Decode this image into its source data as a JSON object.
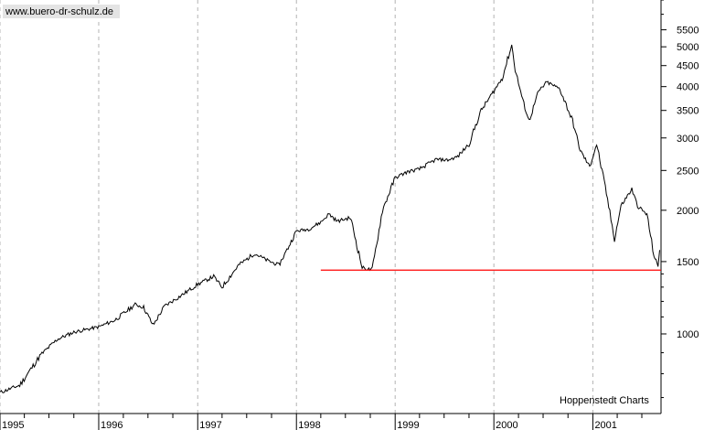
{
  "chart_data": {
    "type": "line",
    "title": "",
    "xlabel": "",
    "ylabel": "",
    "y_scale": "log",
    "ylim": [
      640,
      6500
    ],
    "xlim": [
      "1995-01-01",
      "2001-09-10"
    ],
    "grid": {
      "vertical_years": true,
      "horizontal": false
    },
    "watermark": "www.buero-dr-schulz.de",
    "source_note": "Hoppenstedt Charts",
    "y_ticks": [
      1000,
      1500,
      2000,
      2500,
      3000,
      3500,
      4000,
      4500,
      5000,
      5500
    ],
    "x_tick_labels": [
      "1995",
      "1996",
      "1997",
      "1998",
      "1999",
      "2000",
      "2001"
    ],
    "series": [
      {
        "color": "#000000",
        "x": [
          "1995-01-02",
          "1995-03-15",
          "1995-06-01",
          "1995-08-01",
          "1995-10-01",
          "1995-12-01",
          "1996-01-01",
          "1996-03-01",
          "1996-05-15",
          "1996-06-15",
          "1996-07-20",
          "1996-09-01",
          "1996-11-01",
          "1997-01-01",
          "1997-03-01",
          "1997-04-01",
          "1997-06-01",
          "1997-07-30",
          "1997-09-15",
          "1997-10-28",
          "1997-12-01",
          "1998-01-01",
          "1998-02-15",
          "1998-04-01",
          "1998-05-01",
          "1998-06-01",
          "1998-07-20",
          "1998-09-01",
          "1998-10-08",
          "1998-11-15",
          "1999-01-01",
          "1999-02-15",
          "1999-04-01",
          "1999-06-01",
          "1999-07-15",
          "1999-08-20",
          "1999-10-01",
          "1999-11-15",
          "2000-01-01",
          "2000-02-01",
          "2000-03-07",
          "2000-03-20",
          "2000-04-17",
          "2000-05-10",
          "2000-06-15",
          "2000-07-15",
          "2000-09-01",
          "2000-10-18",
          "2000-11-15",
          "2000-12-20",
          "2001-01-15",
          "2001-02-20",
          "2001-03-22",
          "2001-04-15",
          "2001-05-25",
          "2001-06-15",
          "2001-07-20",
          "2001-08-15",
          "2001-08-30",
          "2001-09-05"
        ],
        "y": [
          720,
          750,
          890,
          970,
          1010,
          1030,
          1040,
          1080,
          1180,
          1160,
          1050,
          1170,
          1240,
          1320,
          1380,
          1300,
          1470,
          1570,
          1510,
          1470,
          1620,
          1780,
          1800,
          1870,
          1960,
          1880,
          1920,
          1450,
          1430,
          2000,
          2400,
          2480,
          2520,
          2660,
          2650,
          2700,
          2900,
          3500,
          3900,
          4200,
          5050,
          4400,
          3700,
          3300,
          3900,
          4100,
          3950,
          3300,
          2800,
          2550,
          2900,
          2200,
          1700,
          2050,
          2250,
          2050,
          1950,
          1550,
          1460,
          1600
        ]
      }
    ],
    "support_line": {
      "color": "#ff0000",
      "value": 1430,
      "x_start": "1998-04-01",
      "x_end": "2001-09-10"
    }
  }
}
